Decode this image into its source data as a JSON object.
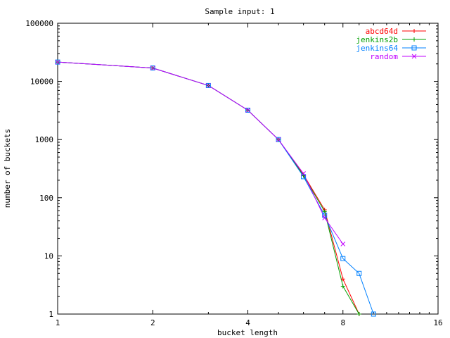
{
  "chart_data": {
    "type": "line",
    "title": "Sample input: 1",
    "xlabel": "bucket length",
    "ylabel": "number of buckets",
    "x_scale": "log2",
    "y_scale": "log10",
    "xlim": [
      1,
      16
    ],
    "ylim": [
      1,
      100000
    ],
    "x_ticks": [
      1,
      2,
      4,
      8,
      16
    ],
    "x_tick_labels": [
      "1",
      "2",
      "4",
      "8",
      "16"
    ],
    "y_ticks": [
      1,
      10,
      100,
      1000,
      10000,
      100000
    ],
    "y_tick_labels": [
      "1",
      "10",
      "100",
      "1000",
      "10000",
      "100000"
    ],
    "grid": false,
    "legend_position": "top-right",
    "series": [
      {
        "name": "abcd64d",
        "color": "#ff0000",
        "marker": "plus",
        "x": [
          1,
          2,
          3,
          4,
          5,
          6,
          7,
          8,
          9
        ],
        "y": [
          21500,
          17000,
          8500,
          3200,
          1000,
          250,
          62,
          4,
          1
        ]
      },
      {
        "name": "jenkins2b",
        "color": "#00a000",
        "marker": "plus",
        "x": [
          1,
          2,
          3,
          4,
          5,
          6,
          7,
          8,
          9
        ],
        "y": [
          21500,
          17000,
          8500,
          3200,
          1000,
          240,
          58,
          3,
          1
        ]
      },
      {
        "name": "jenkins64",
        "color": "#0080ff",
        "marker": "square",
        "x": [
          1,
          2,
          3,
          4,
          5,
          6,
          7,
          8,
          9,
          10
        ],
        "y": [
          21500,
          17000,
          8500,
          3200,
          1000,
          230,
          50,
          9,
          5,
          1
        ]
      },
      {
        "name": "random",
        "color": "#c000ff",
        "marker": "x",
        "x": [
          1,
          2,
          3,
          4,
          5,
          6,
          7,
          8
        ],
        "y": [
          21500,
          17000,
          8500,
          3200,
          1000,
          260,
          45,
          16
        ]
      }
    ]
  }
}
